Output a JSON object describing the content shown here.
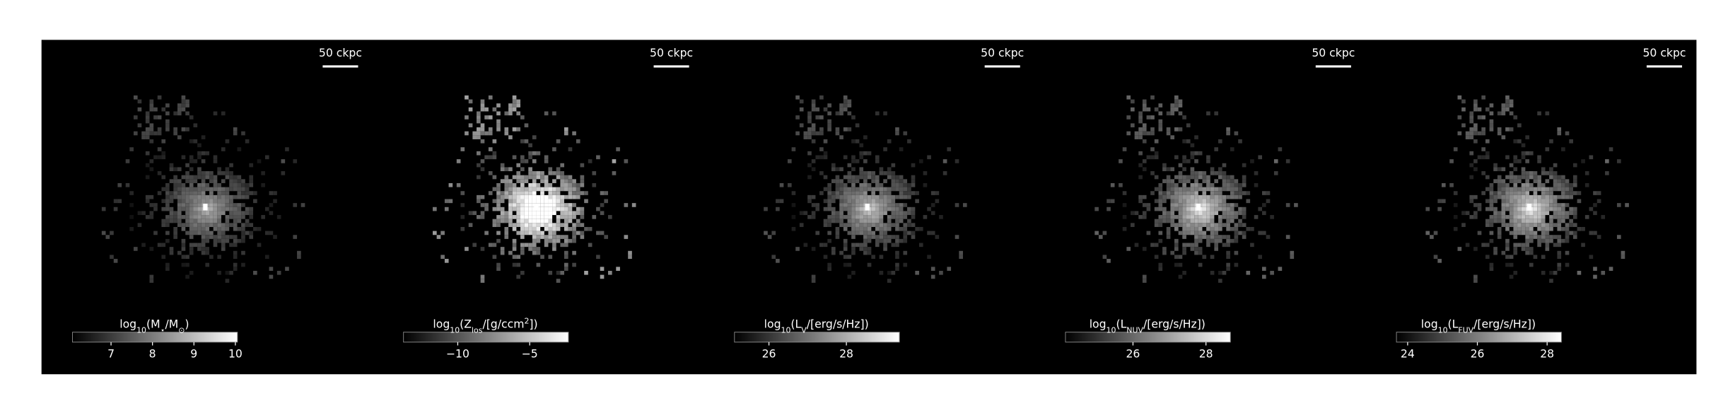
{
  "chart_data": [
    {
      "type": "image",
      "scale_label": "50 ckpc",
      "colorbar_label": [
        {
          "text": "log"
        },
        {
          "text": "10",
          "script": "sub"
        },
        {
          "text": "(M"
        },
        {
          "text": "⋆",
          "script": "sub"
        },
        {
          "text": "/M"
        },
        {
          "text": "⊙",
          "script": "sub"
        },
        {
          "text": ")"
        }
      ],
      "clim": [
        6.07,
        10.05
      ],
      "cticks": [
        7,
        8,
        9,
        10
      ]
    },
    {
      "type": "image",
      "scale_label": "50 ckpc",
      "colorbar_label": [
        {
          "text": "log"
        },
        {
          "text": "10",
          "script": "sub"
        },
        {
          "text": "(Z"
        },
        {
          "text": "los",
          "script": "sub"
        },
        {
          "text": "/[g/ccm"
        },
        {
          "text": "2",
          "script": "super"
        },
        {
          "text": "])"
        }
      ],
      "clim": [
        -13.77,
        -2.31
      ],
      "cticks": [
        {
          "value": -10,
          "label": "−10"
        },
        {
          "value": -5,
          "label": "−5"
        }
      ]
    },
    {
      "type": "image",
      "scale_label": "50 ckpc",
      "colorbar_label": [
        {
          "text": "log"
        },
        {
          "text": "10",
          "script": "sub"
        },
        {
          "text": "(L"
        },
        {
          "text": "V",
          "script": "sub"
        },
        {
          "text": "/[erg/s/Hz])"
        }
      ],
      "clim": [
        25.11,
        29.37
      ],
      "cticks": [
        26,
        28
      ]
    },
    {
      "type": "image",
      "scale_label": "50 ckpc",
      "colorbar_label": [
        {
          "text": "log"
        },
        {
          "text": "10",
          "script": "sub"
        },
        {
          "text": "(L"
        },
        {
          "text": "NUV",
          "script": "sub"
        },
        {
          "text": "/[erg/s/Hz])"
        }
      ],
      "clim": [
        24.15,
        28.67
      ],
      "cticks": [
        26,
        28
      ]
    },
    {
      "type": "image",
      "scale_label": "50 ckpc",
      "colorbar_label": [
        {
          "text": "log"
        },
        {
          "text": "10",
          "script": "sub"
        },
        {
          "text": "(L"
        },
        {
          "text": "FUV",
          "script": "sub"
        },
        {
          "text": "/[erg/s/Hz])"
        }
      ],
      "clim": [
        23.68,
        28.41
      ],
      "cticks": [
        24,
        26,
        28
      ]
    }
  ]
}
